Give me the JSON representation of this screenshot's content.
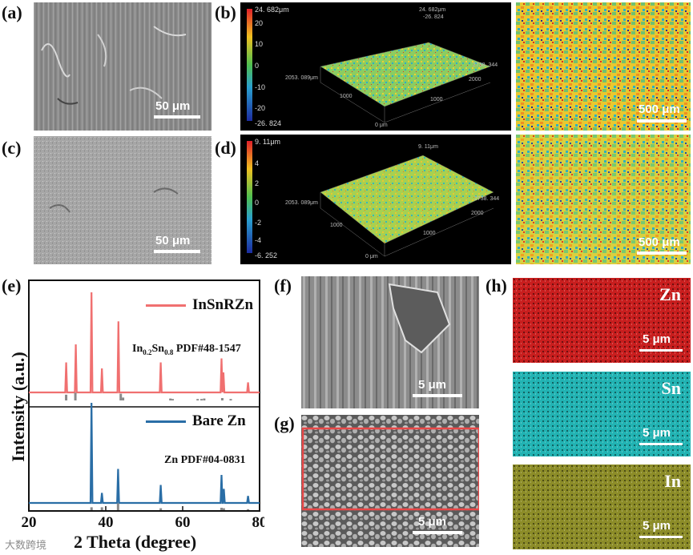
{
  "panels": {
    "a": {
      "label": "(a)",
      "scale": "50 μm"
    },
    "b": {
      "label": "(b)",
      "cbar_max": "24. 682μm",
      "cbar_ticks": [
        "20",
        "10",
        "0",
        "-10",
        "-20"
      ],
      "cbar_min": "-26. 824",
      "corner_top": "24. 682μm",
      "corner_top2": "-26. 824",
      "x_extent": "2738. 344",
      "y_extent": "2053. 089μm",
      "axis_ticks": [
        "1000",
        "2000",
        "1000",
        "0 μm"
      ],
      "map_scale": "500 μm"
    },
    "c": {
      "label": "(c)",
      "scale": "50 μm"
    },
    "d": {
      "label": "(d)",
      "cbar_max": "9. 11μm",
      "cbar_ticks": [
        "4",
        "2",
        "0",
        "-2",
        "-4"
      ],
      "cbar_min": "-6. 252",
      "corner_top": "9. 11μm",
      "x_extent": "2738. 344",
      "y_extent": "2053. 089μm",
      "axis_ticks": [
        "1000",
        "2000",
        "1000",
        "0 μm"
      ],
      "map_scale": "500 μm"
    },
    "e": {
      "label": "(e)"
    },
    "f": {
      "label": "(f)",
      "scale": "5 μm"
    },
    "g": {
      "label": "(g)",
      "scale": "5 μm"
    },
    "h": {
      "label": "(h)",
      "maps": [
        {
          "element": "Zn",
          "scale": "5 μm",
          "color": "#c81e1e"
        },
        {
          "element": "Sn",
          "scale": "5 μm",
          "color": "#22b3b3"
        },
        {
          "element": "In",
          "scale": "5 μm",
          "color": "#8c8c28"
        }
      ]
    }
  },
  "chart_data": {
    "type": "line",
    "xlabel": "2 Theta (degree)",
    "ylabel": "Intensity (a.u.)",
    "xlim": [
      20,
      80
    ],
    "xticks": [
      "20",
      "40",
      "60",
      "80"
    ],
    "series": [
      {
        "name": "InSnRZn",
        "color": "#f07070",
        "peaks": [
          [
            29.7,
            0.3
          ],
          [
            32.2,
            0.48
          ],
          [
            36.3,
            1.0
          ],
          [
            39.0,
            0.24
          ],
          [
            43.3,
            0.71
          ],
          [
            54.3,
            0.3
          ],
          [
            70.1,
            0.34
          ],
          [
            70.6,
            0.2
          ],
          [
            77.0,
            0.1
          ]
        ],
        "annotation": "In0.2Sn0.8 PDF#48-1547",
        "reference_lines": [
          [
            29.7,
            0.12
          ],
          [
            32.1,
            0.16
          ],
          [
            43.9,
            0.14
          ],
          [
            44.5,
            0.06
          ],
          [
            56.8,
            0.04
          ],
          [
            57.4,
            0.03
          ],
          [
            63.9,
            0.03
          ],
          [
            64.9,
            0.03
          ],
          [
            65.6,
            0.04
          ],
          [
            70.3,
            0.05
          ],
          [
            72.5,
            0.03
          ]
        ]
      },
      {
        "name": "Bare Zn",
        "color": "#2a6ea6",
        "peaks": [
          [
            36.3,
            1.0
          ],
          [
            39.0,
            0.1
          ],
          [
            43.2,
            0.34
          ],
          [
            54.3,
            0.18
          ],
          [
            70.1,
            0.28
          ],
          [
            70.7,
            0.14
          ],
          [
            77.0,
            0.07
          ]
        ],
        "annotation": "Zn PDF#04-0831",
        "reference_lines": [
          [
            36.3,
            0.06
          ],
          [
            39.0,
            0.06
          ],
          [
            43.2,
            0.14
          ],
          [
            54.3,
            0.04
          ],
          [
            70.1,
            0.05
          ],
          [
            70.7,
            0.04
          ],
          [
            77.0,
            0.02
          ]
        ]
      }
    ]
  },
  "xrd_labels": {
    "legend1": "InSnRZn",
    "legend2": "Bare Zn",
    "ann1_main": "In",
    "ann1_sub1": "0.2",
    "ann1_mid": "Sn",
    "ann1_sub2": "0.8",
    "ann1_tail": " PDF#48-1547",
    "ann2": "Zn PDF#04-0831"
  },
  "watermark": "大数跨境"
}
